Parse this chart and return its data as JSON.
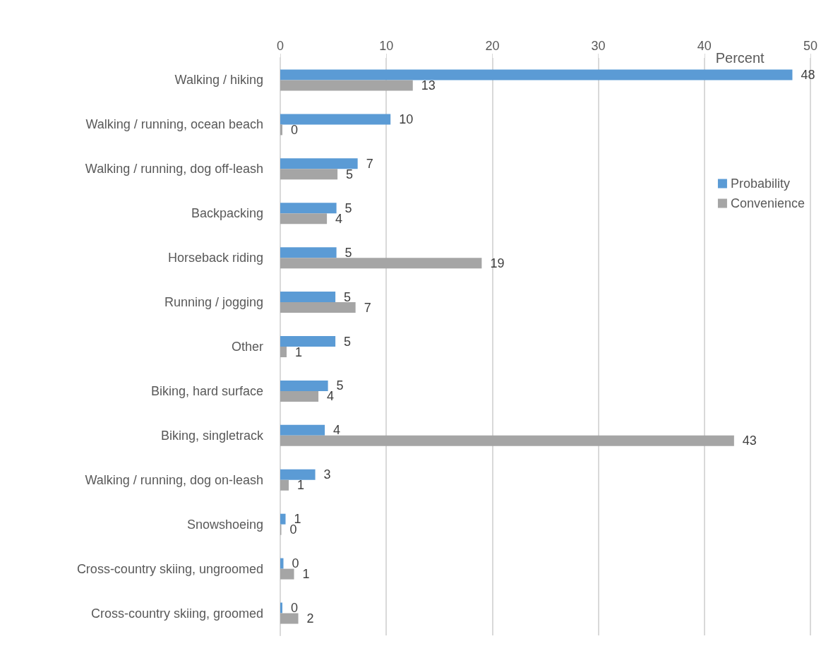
{
  "chart_data": {
    "type": "bar",
    "orientation": "horizontal",
    "xlabel": "Percent",
    "categories": [
      "Walking / hiking",
      "Walking / running, ocean beach",
      "Walking / running, dog off-leash",
      "Backpacking",
      "Horseback riding",
      "Running / jogging",
      "Other",
      "Biking, hard surface",
      "Biking, singletrack",
      "Walking / running, dog on-leash",
      "Snowshoeing",
      "Cross-country skiing, ungroomed",
      "Cross-country skiing, groomed"
    ],
    "series": [
      {
        "name": "Probability",
        "color": "#5b9bd5",
        "values": [
          48.3,
          10.4,
          7.3,
          5.3,
          5.3,
          5.2,
          5.2,
          4.5,
          4.2,
          3.3,
          0.5,
          0.3,
          0.2
        ],
        "value_labels": [
          "48",
          "10",
          "7",
          "5",
          "5",
          "5",
          "5",
          "5",
          "4",
          "3",
          "1",
          "0",
          "0"
        ]
      },
      {
        "name": "Convenience",
        "color": "#a5a5a5",
        "values": [
          12.5,
          0.2,
          5.4,
          4.4,
          19.0,
          7.1,
          0.6,
          3.6,
          42.8,
          0.8,
          0.1,
          1.3,
          1.7
        ],
        "value_labels": [
          "13",
          "0",
          "5",
          "4",
          "19",
          "7",
          "1",
          "4",
          "43",
          "1",
          "0",
          "1",
          "2"
        ]
      }
    ],
    "xlim": [
      0,
      50
    ],
    "xticks": [
      0,
      10,
      20,
      30,
      40,
      50
    ],
    "grid": "x",
    "legend": "right"
  }
}
